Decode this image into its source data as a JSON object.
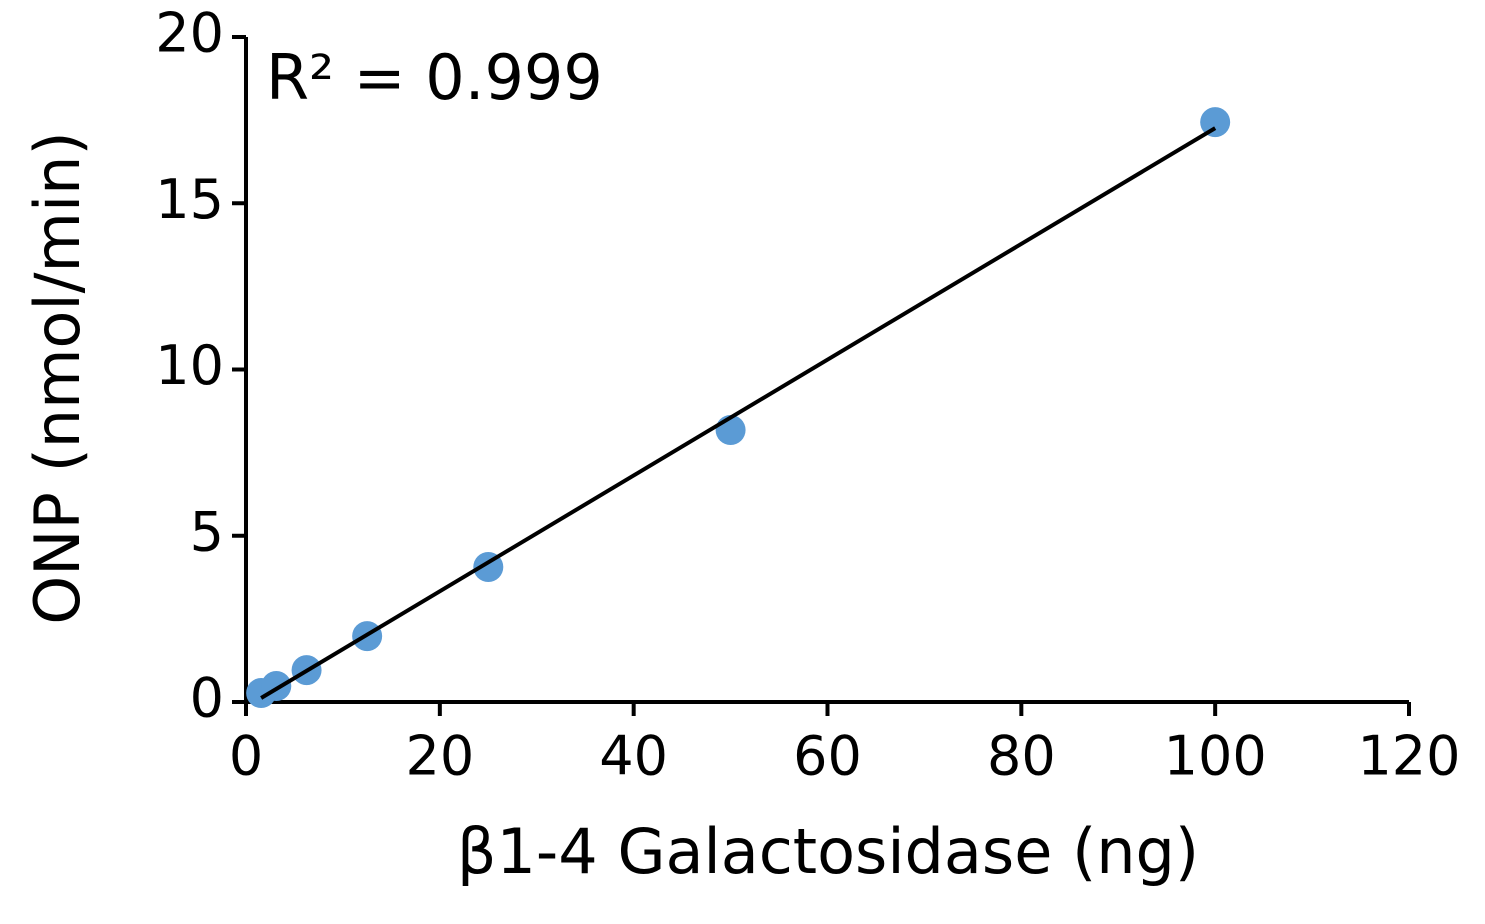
{
  "chart_data": {
    "type": "scatter",
    "xlabel": "β1-4 Galactosidase (ng)",
    "ylabel": "ONP (nmol/min)",
    "annotation": "R² = 0.999",
    "x": [
      1.5625,
      3.125,
      6.25,
      12.5,
      25,
      50,
      100
    ],
    "y": [
      0.27,
      0.48,
      0.96,
      1.98,
      4.06,
      8.18,
      17.44
    ],
    "color": "#5b9bd5",
    "fit_line": {
      "x": [
        1.5625,
        100
      ],
      "y": [
        0.12,
        17.26
      ],
      "color": "#000000"
    },
    "xlim": [
      0,
      120
    ],
    "xticks": [
      0,
      20,
      40,
      60,
      80,
      100,
      120
    ],
    "ylim": [
      0,
      20
    ],
    "yticks": [
      0,
      5,
      10,
      15,
      20
    ],
    "grid": false
  }
}
